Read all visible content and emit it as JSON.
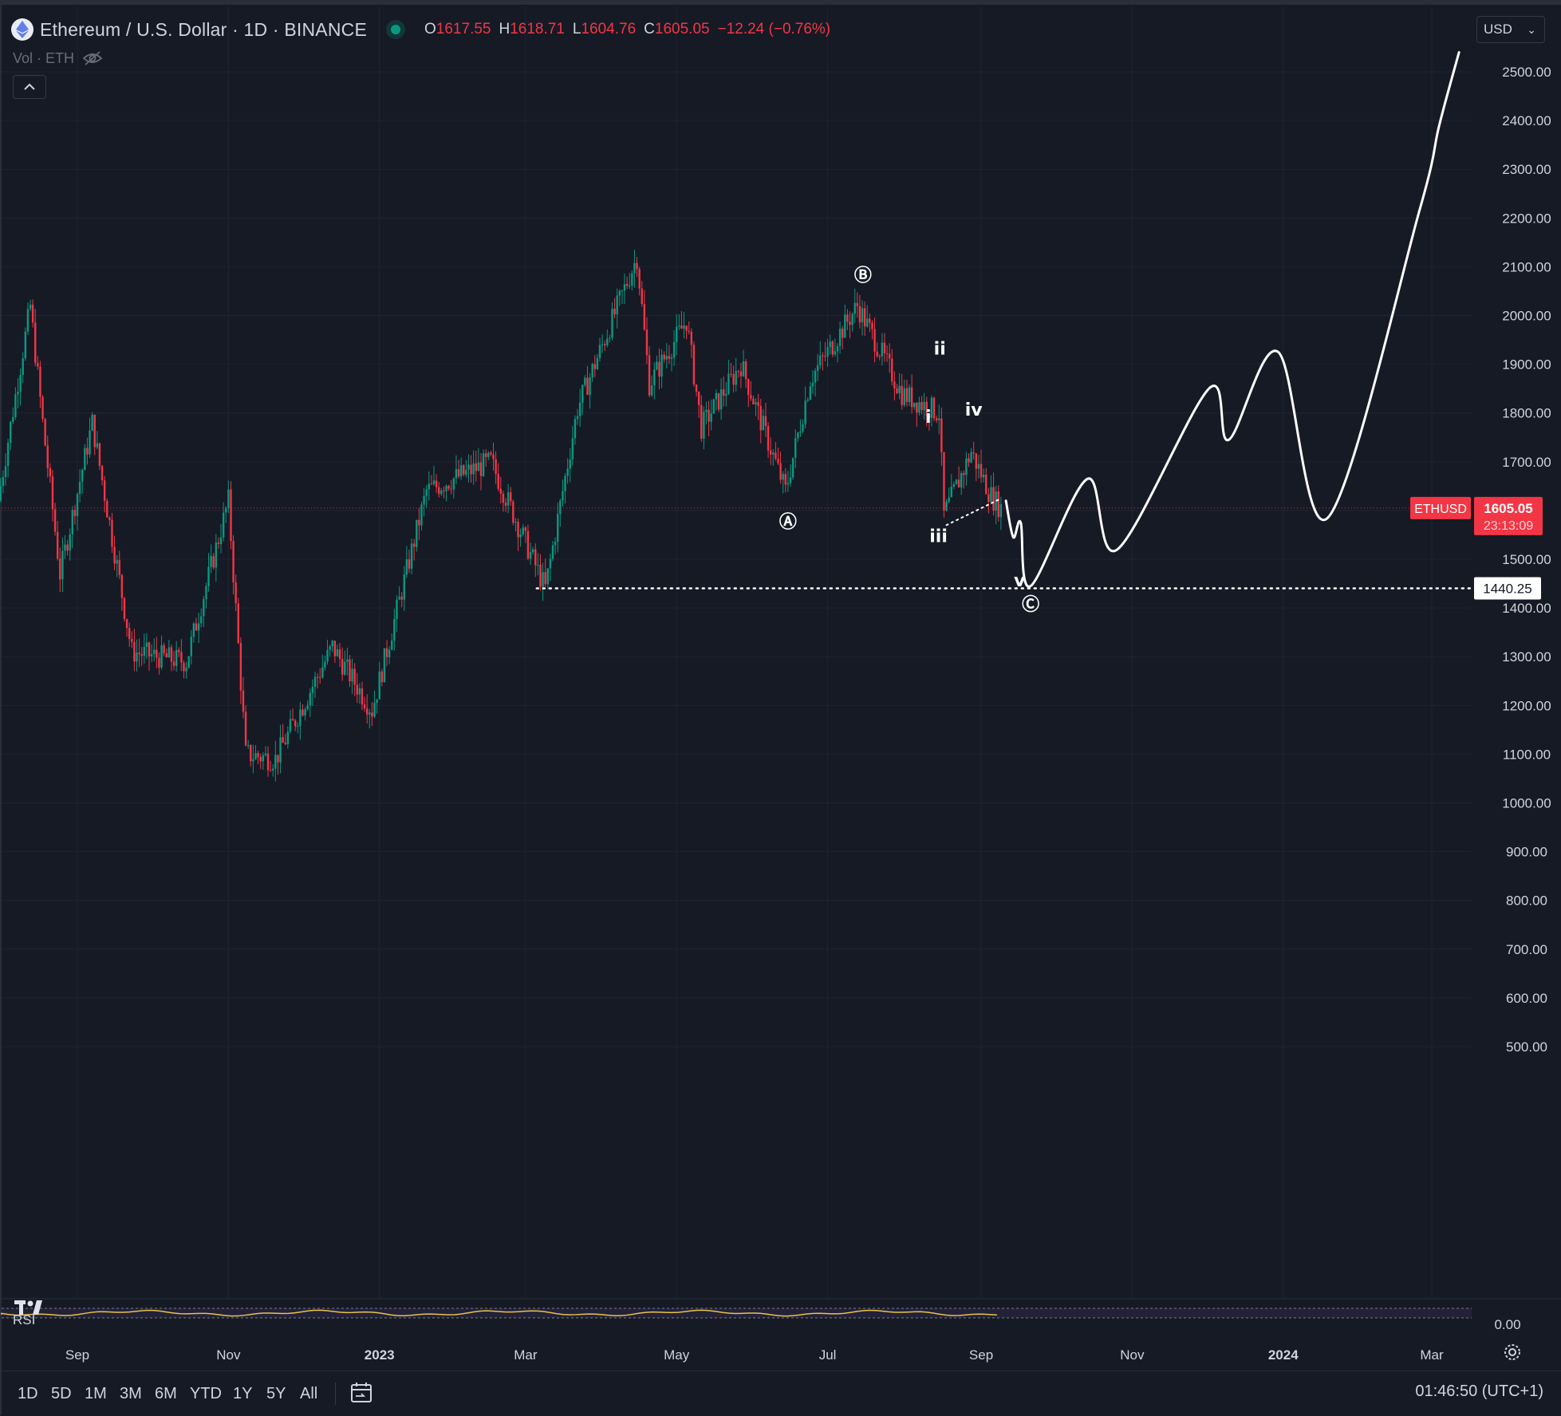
{
  "header": {
    "symbol_title": "Ethereum / U.S. Dollar · 1D · BINANCE",
    "ohlc": {
      "o_label": "O",
      "o_value": "1617.55",
      "h_label": "H",
      "h_value": "1618.71",
      "l_label": "L",
      "l_value": "1604.76",
      "c_label": "C",
      "c_value": "1605.05",
      "change": "−12.24 (−0.76%)"
    },
    "volume_label": "Vol · ETH"
  },
  "currency_select": {
    "value": "USD"
  },
  "price_axis": {
    "ticks": [
      "2500.00",
      "2400.00",
      "2300.00",
      "2200.00",
      "2100.00",
      "2000.00",
      "1900.00",
      "1800.00",
      "1700.00",
      "1500.00",
      "1400.00",
      "1300.00",
      "1200.00",
      "1100.00",
      "1000.00",
      "900.00",
      "800.00",
      "700.00",
      "600.00",
      "500.00"
    ],
    "rsi_tick": "0.00",
    "current_symbol": "ETHUSD",
    "current_price": "1605.05",
    "countdown": "23:13:09",
    "level_label": "1440.25"
  },
  "time_axis": {
    "labels": [
      "Sep",
      "Nov",
      "2023",
      "Mar",
      "May",
      "Jul",
      "Sep",
      "Nov",
      "2024",
      "Mar"
    ]
  },
  "indicator": {
    "label": "RSI"
  },
  "wave_labels": {
    "A": "Ⓐ",
    "B": "Ⓑ",
    "C": "Ⓒ",
    "i": "i",
    "ii": "ii",
    "iii": "iii",
    "iv": "iv",
    "v": "v"
  },
  "bottom_toolbar": {
    "ranges": [
      "1D",
      "5D",
      "1M",
      "3M",
      "6M",
      "YTD",
      "1Y",
      "5Y",
      "All"
    ],
    "clock": "01:46:50 (UTC+1)"
  },
  "colors": {
    "background": "#161a25",
    "up": "#089981",
    "down": "#f23645",
    "grid": "#1f2430",
    "drawing": "#ffffff",
    "rsi_line": "#e8c34a"
  },
  "chart_data": {
    "type": "candlestick",
    "symbol": "ETHUSD",
    "interval": "1D",
    "exchange": "BINANCE",
    "ylim": [
      430,
      2560
    ],
    "x_range": [
      "2022-08-01",
      "2024-03-31"
    ],
    "support_level": 1440.25,
    "last_close": 1605.05,
    "swing_points": [
      {
        "date": "2022-08-01",
        "price": 1620
      },
      {
        "date": "2022-08-14",
        "price": 2020
      },
      {
        "date": "2022-08-19",
        "price": 1780
      },
      {
        "date": "2022-08-26",
        "price": 1470
      },
      {
        "date": "2022-09-08",
        "price": 1780
      },
      {
        "date": "2022-09-24",
        "price": 1310
      },
      {
        "date": "2022-10-16",
        "price": 1290
      },
      {
        "date": "2022-11-02",
        "price": 1620
      },
      {
        "date": "2022-11-09",
        "price": 1100
      },
      {
        "date": "2022-11-21",
        "price": 1090
      },
      {
        "date": "2022-12-14",
        "price": 1320
      },
      {
        "date": "2022-12-30",
        "price": 1190
      },
      {
        "date": "2023-01-21",
        "price": 1640
      },
      {
        "date": "2023-02-16",
        "price": 1700
      },
      {
        "date": "2023-03-10",
        "price": 1440
      },
      {
        "date": "2023-03-23",
        "price": 1810
      },
      {
        "date": "2023-04-16",
        "price": 2120
      },
      {
        "date": "2023-04-21",
        "price": 1860
      },
      {
        "date": "2023-05-06",
        "price": 1990
      },
      {
        "date": "2023-05-12",
        "price": 1770
      },
      {
        "date": "2023-05-28",
        "price": 1900
      },
      {
        "date": "2023-06-15",
        "price": 1640
      },
      {
        "date": "2023-06-25",
        "price": 1870
      },
      {
        "date": "2023-07-14",
        "price": 2020
      },
      {
        "date": "2023-08-01",
        "price": 1840
      },
      {
        "date": "2023-08-16",
        "price": 1800
      },
      {
        "date": "2023-08-18",
        "price": 1590
      },
      {
        "date": "2023-08-29",
        "price": 1720
      },
      {
        "date": "2023-09-06",
        "price": 1630
      },
      {
        "date": "2023-09-10",
        "price": 1605
      }
    ],
    "projection": [
      {
        "date": "2023-09-11",
        "price": 1620
      },
      {
        "date": "2023-09-14",
        "price": 1545
      },
      {
        "date": "2023-09-17",
        "price": 1575
      },
      {
        "date": "2023-09-21",
        "price": 1445
      },
      {
        "date": "2023-10-14",
        "price": 1665
      },
      {
        "date": "2023-10-26",
        "price": 1520
      },
      {
        "date": "2023-12-02",
        "price": 1850
      },
      {
        "date": "2023-12-10",
        "price": 1745
      },
      {
        "date": "2023-12-30",
        "price": 1925
      },
      {
        "date": "2024-01-19",
        "price": 1585
      },
      {
        "date": "2024-02-25",
        "price": 2215
      },
      {
        "date": "2024-03-04",
        "price": 2390
      },
      {
        "date": "2024-03-12",
        "price": 2540
      }
    ],
    "wave_annotations": [
      {
        "label": "Ⓐ",
        "date": "2023-06-15"
      },
      {
        "label": "Ⓑ",
        "date": "2023-07-14"
      },
      {
        "label": "i",
        "date": "2023-08-01"
      },
      {
        "label": "ii",
        "date": "2023-08-05"
      },
      {
        "label": "iii",
        "date": "2023-08-18"
      },
      {
        "label": "iv",
        "date": "2023-08-29"
      },
      {
        "label": "v",
        "date": "2023-09-21"
      },
      {
        "label": "Ⓒ",
        "date": "2023-09-21"
      }
    ]
  }
}
